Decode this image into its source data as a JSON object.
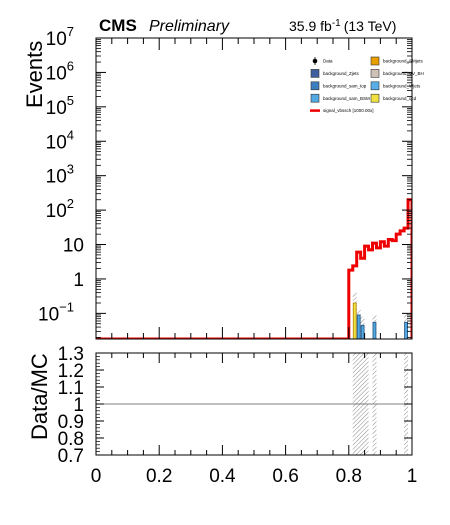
{
  "header": {
    "experiment": "CMS",
    "status": "Preliminary",
    "lumi_value": "35.9 fb",
    "lumi_exp": "-1",
    "lumi_energy": "(13 TeV)"
  },
  "chart_data": [
    {
      "type": "histogram",
      "panel": "main",
      "ylabel": "Events",
      "yscale": "log",
      "ylim": [
        0.018,
        10000000
      ],
      "xlim": [
        0,
        1
      ],
      "bin_width": 0.0125,
      "y_ticks": [
        {
          "value": 10000000,
          "base": "10",
          "exp": "7"
        },
        {
          "value": 1000000,
          "base": "10",
          "exp": "6"
        },
        {
          "value": 100000,
          "base": "10",
          "exp": "5"
        },
        {
          "value": 10000,
          "base": "10",
          "exp": "4"
        },
        {
          "value": 1000,
          "base": "10",
          "exp": "3"
        },
        {
          "value": 100,
          "base": "10",
          "exp": "2"
        },
        {
          "value": 10,
          "base": "10",
          "exp": ""
        },
        {
          "value": 1,
          "base": "1",
          "exp": ""
        },
        {
          "value": 0.1,
          "base": "10",
          "exp": "−1"
        }
      ],
      "legend_position": "top-right",
      "legend": [
        {
          "label": "Data",
          "kind": "marker",
          "color": "#000000"
        },
        {
          "label": "background_Zjets",
          "kind": "box",
          "color": "#3f5f9f"
        },
        {
          "label": "background_sam_top",
          "kind": "box",
          "color": "#3a7ec0"
        },
        {
          "label": "background_sam_BSM",
          "kind": "box",
          "color": "#52a8e0"
        },
        {
          "label": "signal_vbssch [1000.00x]",
          "kind": "line",
          "color": "#ee0000"
        },
        {
          "label": "background_SMjets",
          "kind": "box",
          "color": "#e8a000"
        },
        {
          "label": "background_VV_BH",
          "kind": "box",
          "color": "#cfc0b8"
        },
        {
          "label": "background_Wjets",
          "kind": "box",
          "color": "#5aaee8"
        },
        {
          "label": "background_qcd",
          "kind": "box",
          "color": "#f0e040"
        }
      ],
      "series": [
        {
          "name": "signal_vbssch [1000.00x]",
          "style": "step",
          "color": "#ee0000",
          "x_start": [
            0.0,
            0.8,
            0.8125,
            0.825,
            0.8375,
            0.85,
            0.8625,
            0.875,
            0.8875,
            0.9,
            0.9125,
            0.925,
            0.9375,
            0.95,
            0.9625,
            0.975,
            0.9875
          ],
          "x_end": [
            0.8,
            0.8125,
            0.825,
            0.8375,
            0.85,
            0.8625,
            0.875,
            0.8875,
            0.9,
            0.9125,
            0.925,
            0.9375,
            0.95,
            0.9625,
            0.975,
            0.9875,
            1.0
          ],
          "values": [
            0.018,
            1.8,
            2.4,
            6,
            4,
            9,
            7,
            11,
            8,
            12,
            9,
            14,
            13,
            20,
            25,
            30,
            200
          ]
        },
        {
          "name": "background_qcd",
          "style": "bar",
          "color": "#f0e040",
          "edge_color": "#b08000",
          "x_start": [
            0.8125
          ],
          "x_end": [
            0.825
          ],
          "values": [
            0.2
          ]
        },
        {
          "name": "background_sam_BSM",
          "style": "bar",
          "color": "#52a8e0",
          "edge_color": "#1f4f7f",
          "x_start": [
            0.825,
            0.8375,
            0.875,
            0.975
          ],
          "x_end": [
            0.8375,
            0.85,
            0.8875,
            0.9875
          ],
          "values": [
            0.09,
            0.045,
            0.055,
            0.055
          ]
        }
      ],
      "uncertainty_bins": [
        {
          "x_start": 0.8125,
          "x_end": 0.825,
          "low": 0.1,
          "high": 0.4
        },
        {
          "x_start": 0.825,
          "x_end": 0.8375,
          "low": 0.04,
          "high": 0.13
        },
        {
          "x_start": 0.8375,
          "x_end": 0.85,
          "low": 0.02,
          "high": 0.08
        },
        {
          "x_start": 0.875,
          "x_end": 0.8875,
          "low": 0.025,
          "high": 0.09
        },
        {
          "x_start": 0.975,
          "x_end": 0.9875,
          "low": 0.025,
          "high": 0.1
        }
      ]
    },
    {
      "type": "ratio",
      "panel": "ratio",
      "ylabel": "Data/MC",
      "ylim": [
        0.7,
        1.3
      ],
      "reference_line": 1.0,
      "y_tick_values": [
        0.7,
        0.8,
        0.9,
        1.0,
        1.1,
        1.2,
        1.3
      ],
      "y_tick_labels": [
        "0.7",
        "0.8",
        "0.9",
        "1",
        "1.1",
        "1.2",
        "1.3"
      ],
      "x_tick_values": [
        0,
        0.2,
        0.4,
        0.6,
        0.8,
        1
      ],
      "x_tick_labels": [
        "0",
        "0.2",
        "0.4",
        "0.6",
        "0.8",
        "1"
      ],
      "uncertainty_bins": [
        {
          "x_start": 0.8125,
          "x_end": 0.8625
        },
        {
          "x_start": 0.875,
          "x_end": 0.8875
        },
        {
          "x_start": 0.975,
          "x_end": 0.9875
        }
      ]
    }
  ]
}
